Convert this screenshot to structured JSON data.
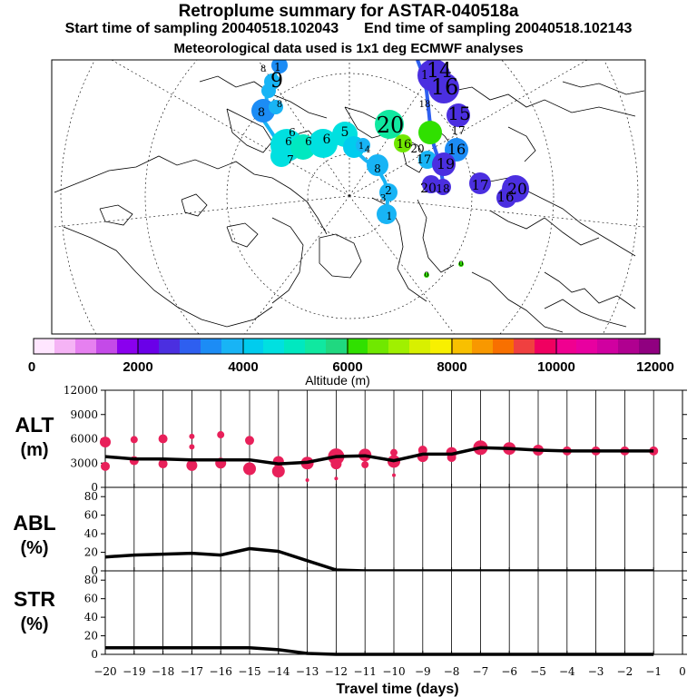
{
  "header": {
    "title": "Retroplume summary for ASTAR-040518a",
    "start": "Start time of sampling 20040518.102043",
    "end": "End time of sampling 20040518.102143",
    "met": "Meteorological data used is 1x1 deg ECMWF analyses"
  },
  "colorbar": {
    "ticks": [
      "0",
      "2000",
      "4000",
      "6000",
      "8000",
      "10000",
      "12000"
    ],
    "label": "Altitude (m)",
    "colors": [
      "#ffe6ff",
      "#f5b3f5",
      "#e680f0",
      "#c44ae8",
      "#8a00ee",
      "#6a00e8",
      "#4b2fe0",
      "#2e5ff0",
      "#1c8cf5",
      "#18b4f5",
      "#00ccee",
      "#00e0e0",
      "#00e8c0",
      "#10e8a0",
      "#20d880",
      "#30e000",
      "#70e800",
      "#a0f000",
      "#d8f000",
      "#f8f000",
      "#f8c000",
      "#f89800",
      "#f87000",
      "#f04040",
      "#f00060",
      "#f00090",
      "#e800a0",
      "#d000a0",
      "#b00090",
      "#900080"
    ]
  },
  "map": {
    "labels": [
      {
        "text": "1",
        "color": "#4b2fe0"
      },
      {
        "text": "8",
        "color": "#18b4f5"
      },
      {
        "text": "9",
        "color": "#18b4f5"
      },
      {
        "text": "8",
        "color": "#1c8cf5"
      },
      {
        "text": "8",
        "color": "#18b4f5"
      },
      {
        "text": "6",
        "color": "#18b4f5"
      },
      {
        "text": "6",
        "color": "#00ccee"
      },
      {
        "text": "5",
        "color": "#00ccee"
      },
      {
        "text": "7",
        "color": "#00e0e0"
      },
      {
        "text": "6",
        "color": "#00e0e0"
      },
      {
        "text": "6",
        "color": "#00e8c0"
      },
      {
        "text": "1",
        "color": "#00e0e0"
      },
      {
        "text": "4",
        "color": "#00e0e0"
      },
      {
        "text": "20",
        "color": "#10e8a0"
      },
      {
        "text": "16",
        "color": "#70e800"
      },
      {
        "text": "1",
        "color": "#4b2fe0"
      },
      {
        "text": "14",
        "color": "#4b2fe0"
      },
      {
        "text": "16",
        "color": "#4b2fe0"
      },
      {
        "text": "15",
        "color": "#30e000"
      },
      {
        "text": "17",
        "color": "#4b2fe0"
      },
      {
        "text": "18",
        "color": "#4b2fe0"
      },
      {
        "text": "20",
        "color": "#4b2fe0"
      },
      {
        "text": "16",
        "color": "#1c8cf5"
      },
      {
        "text": "17",
        "color": "#18b4f5"
      },
      {
        "text": "19",
        "color": "#4b2fe0"
      },
      {
        "text": "8",
        "color": "#00ccee"
      },
      {
        "text": "2",
        "color": "#00ccee"
      },
      {
        "text": "3",
        "color": "#00ccee"
      },
      {
        "text": "1",
        "color": "#00ccee"
      },
      {
        "text": "20",
        "color": "#4b2fe0"
      },
      {
        "text": "18",
        "color": "#4b2fe0"
      },
      {
        "text": "17",
        "color": "#4b2fe0"
      },
      {
        "text": "16",
        "color": "#4b2fe0"
      },
      {
        "text": "20",
        "color": "#4b2fe0"
      },
      {
        "text": "0",
        "color": "#30e000"
      },
      {
        "text": "0",
        "color": "#30e000"
      }
    ]
  },
  "panels": {
    "alt": {
      "title": "ALT",
      "unit": "(m)"
    },
    "abl": {
      "title": "ABL",
      "unit": "(%)"
    },
    "str": {
      "title": "STR",
      "unit": "(%)"
    },
    "xlabel": "Travel time (days)"
  },
  "chart_data": [
    {
      "type": "line",
      "title": "ALT",
      "ylabel": "(m)",
      "xlabel": "Travel time (days)",
      "xlim": [
        -20,
        0
      ],
      "ylim": [
        0,
        12000
      ],
      "yticks": [
        0,
        3000,
        6000,
        9000,
        12000
      ],
      "xticks": [
        -20,
        -19,
        -18,
        -17,
        -16,
        -15,
        -14,
        -13,
        -12,
        -11,
        -10,
        -9,
        -8,
        -7,
        -6,
        -5,
        -4,
        -3,
        -2,
        -1,
        0
      ],
      "series": [
        {
          "name": "mean altitude",
          "color": "#000000",
          "x": [
            -20,
            -19,
            -18,
            -17,
            -16,
            -15,
            -14,
            -13,
            -12,
            -11,
            -10,
            -9,
            -8,
            -7,
            -6,
            -5,
            -4,
            -3,
            -2,
            -1
          ],
          "y": [
            3800,
            3500,
            3500,
            3400,
            3400,
            3400,
            2900,
            3100,
            3800,
            3900,
            3300,
            4100,
            4100,
            4900,
            4800,
            4600,
            4500,
            4500,
            4500,
            4500
          ]
        }
      ],
      "clusters": {
        "color": "#e8205a",
        "x": [
          -20,
          -20,
          -19,
          -19,
          -18,
          -18,
          -17,
          -17,
          -17,
          -16,
          -16,
          -15,
          -15,
          -14,
          -14,
          -13,
          -13,
          -12,
          -12,
          -12,
          -11,
          -11,
          -10,
          -10,
          -10,
          -9,
          -9,
          -8,
          -8,
          -7,
          -6,
          -5,
          -4,
          -3,
          -2,
          -1
        ],
        "y": [
          5600,
          2600,
          5900,
          3300,
          6000,
          2900,
          6300,
          2700,
          5000,
          6500,
          3000,
          5800,
          2300,
          2000,
          3200,
          900,
          3000,
          3800,
          2900,
          1100,
          2800,
          4000,
          4300,
          3200,
          1500,
          4600,
          3800,
          4300,
          3700,
          4900,
          4800,
          4600,
          4500,
          4500,
          4500,
          4500
        ],
        "size": [
          6,
          5,
          4,
          5,
          5,
          5,
          3,
          6,
          3,
          4,
          6,
          5,
          7,
          7,
          6,
          2,
          7,
          9,
          6,
          2,
          4,
          7,
          4,
          7,
          2,
          5,
          6,
          6,
          5,
          8,
          7,
          6,
          5,
          5,
          5,
          5
        ]
      }
    },
    {
      "type": "line",
      "title": "ABL",
      "ylabel": "(%)",
      "xlim": [
        -20,
        0
      ],
      "ylim": [
        0,
        90
      ],
      "yticks": [
        0,
        20,
        40,
        60,
        80
      ],
      "series": [
        {
          "name": "fraction in boundary layer",
          "x": [
            -20,
            -19,
            -18,
            -17,
            -16,
            -15,
            -14,
            -13,
            -12,
            -11,
            -10,
            -9,
            -8,
            -7,
            -6,
            -5,
            -4,
            -3,
            -2,
            -1
          ],
          "y": [
            15,
            17,
            18,
            19,
            17,
            24,
            21,
            11,
            1,
            0,
            0,
            0,
            0,
            0,
            0,
            0,
            0,
            0,
            0,
            0
          ]
        }
      ]
    },
    {
      "type": "line",
      "title": "STR",
      "ylabel": "(%)",
      "xlim": [
        -20,
        0
      ],
      "ylim": [
        0,
        90
      ],
      "yticks": [
        0,
        20,
        40,
        60,
        80
      ],
      "series": [
        {
          "name": "fraction in stratosphere",
          "x": [
            -20,
            -19,
            -18,
            -17,
            -16,
            -15,
            -14,
            -13,
            -12,
            -11,
            -10,
            -9,
            -8,
            -7,
            -6,
            -5,
            -4,
            -3,
            -2,
            -1
          ],
          "y": [
            7,
            7,
            7,
            7,
            7,
            7,
            5,
            1,
            0,
            0,
            0,
            0,
            0,
            0,
            0,
            0,
            0,
            0,
            0,
            0
          ]
        }
      ]
    }
  ]
}
